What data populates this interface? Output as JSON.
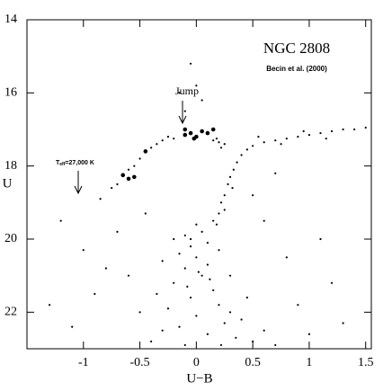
{
  "chart_data": {
    "type": "scatter",
    "title": "NGC 2808",
    "subtitle": "Becin et al. (2000)",
    "x_label": "U−B",
    "y_label": "U",
    "annotations": {
      "jump": "Jump",
      "teff": [
        "T",
        "eff",
        "=27,000 K"
      ]
    },
    "xlim": [
      -1.5,
      1.55
    ],
    "ylim": [
      23,
      14
    ],
    "xticks": [
      -1,
      -0.5,
      0,
      0.5,
      1,
      1.5
    ],
    "yticks": [
      14,
      16,
      18,
      20,
      22
    ],
    "color": "#000000",
    "points": [
      [
        -0.05,
        20.2
      ],
      [
        0.0,
        20.5
      ],
      [
        -0.1,
        20.8
      ],
      [
        0.05,
        21.0
      ],
      [
        -0.15,
        20.4
      ],
      [
        0.1,
        20.7
      ],
      [
        -0.2,
        21.2
      ],
      [
        0.15,
        21.4
      ],
      [
        -0.05,
        21.6
      ],
      [
        0.2,
        21.8
      ],
      [
        -0.25,
        21.9
      ],
      [
        0.0,
        22.1
      ],
      [
        0.25,
        22.3
      ],
      [
        -0.3,
        22.5
      ],
      [
        0.1,
        22.6
      ],
      [
        0.35,
        22.7
      ],
      [
        -0.1,
        22.9
      ],
      [
        0.3,
        21.0
      ],
      [
        -0.3,
        20.6
      ],
      [
        0.05,
        19.8
      ],
      [
        -0.1,
        19.9
      ],
      [
        0.1,
        20.1
      ],
      [
        0.0,
        19.6
      ],
      [
        0.15,
        19.5
      ],
      [
        -0.05,
        20.0
      ],
      [
        0.2,
        20.3
      ],
      [
        -0.2,
        20.0
      ],
      [
        0.02,
        20.9
      ],
      [
        -0.08,
        21.3
      ],
      [
        0.12,
        21.1
      ],
      [
        0.4,
        22.2
      ],
      [
        0.5,
        22.8
      ],
      [
        0.6,
        22.5
      ],
      [
        -0.4,
        22.8
      ],
      [
        0.45,
        21.6
      ],
      [
        -0.35,
        21.5
      ],
      [
        0.7,
        22.9
      ],
      [
        0.3,
        22.0
      ],
      [
        -0.15,
        22.4
      ],
      [
        0.22,
        22.9
      ],
      [
        0.2,
        19.3
      ],
      [
        0.22,
        19.0
      ],
      [
        0.25,
        18.8
      ],
      [
        0.28,
        18.5
      ],
      [
        0.3,
        18.3
      ],
      [
        0.33,
        18.1
      ],
      [
        0.36,
        17.9
      ],
      [
        0.4,
        17.7
      ],
      [
        0.45,
        17.55
      ],
      [
        0.5,
        17.45
      ],
      [
        0.6,
        17.35
      ],
      [
        0.7,
        17.3
      ],
      [
        0.8,
        17.25
      ],
      [
        0.9,
        17.2
      ],
      [
        1.0,
        17.15
      ],
      [
        1.1,
        17.1
      ],
      [
        1.2,
        17.05
      ],
      [
        1.3,
        17.0
      ],
      [
        1.4,
        17.0
      ],
      [
        1.5,
        16.95
      ],
      [
        0.55,
        17.2
      ],
      [
        0.75,
        17.4
      ],
      [
        0.95,
        17.05
      ],
      [
        1.15,
        17.25
      ],
      [
        0.18,
        19.6
      ],
      [
        0.25,
        19.2
      ],
      [
        0.32,
        18.6
      ],
      [
        0.15,
        17.3
      ],
      [
        0.2,
        17.35
      ],
      [
        0.25,
        17.4
      ],
      [
        0.18,
        17.25
      ],
      [
        0.22,
        17.5
      ],
      [
        -0.3,
        17.3
      ],
      [
        -0.25,
        17.2
      ],
      [
        -0.2,
        17.25
      ],
      [
        -0.35,
        17.4
      ],
      [
        -0.4,
        17.5
      ],
      [
        -0.5,
        17.8
      ],
      [
        -0.55,
        18.0
      ],
      [
        -0.6,
        18.1
      ],
      [
        -0.7,
        18.5
      ],
      [
        -0.75,
        18.6
      ],
      [
        -0.1,
        16.5
      ],
      [
        0.0,
        15.8
      ],
      [
        -0.05,
        15.2
      ],
      [
        0.05,
        16.2
      ],
      [
        -0.15,
        16.0
      ],
      [
        -1.2,
        19.5
      ],
      [
        -1.0,
        20.3
      ],
      [
        -0.9,
        21.5
      ],
      [
        -1.1,
        22.4
      ],
      [
        -0.8,
        20.8
      ],
      [
        -0.7,
        19.8
      ],
      [
        -0.6,
        21.0
      ],
      [
        -0.5,
        22.0
      ],
      [
        0.8,
        20.5
      ],
      [
        0.9,
        21.8
      ],
      [
        1.0,
        22.6
      ],
      [
        1.1,
        20.0
      ],
      [
        0.6,
        19.5
      ],
      [
        1.2,
        21.2
      ],
      [
        -1.3,
        21.8
      ],
      [
        -0.85,
        18.9
      ],
      [
        0.5,
        18.8
      ],
      [
        0.7,
        18.2
      ],
      [
        1.3,
        22.3
      ],
      [
        -0.45,
        19.3
      ]
    ],
    "highlight": [
      [
        -0.65,
        18.25
      ],
      [
        -0.6,
        18.35
      ],
      [
        -0.55,
        18.3
      ],
      [
        -0.45,
        17.6
      ],
      [
        -0.1,
        17.0
      ],
      [
        -0.1,
        17.15
      ],
      [
        -0.05,
        17.1
      ],
      [
        0.0,
        17.2
      ],
      [
        0.05,
        17.05
      ],
      [
        0.1,
        17.1
      ],
      [
        0.15,
        17.0
      ],
      [
        -0.02,
        17.25
      ]
    ]
  }
}
